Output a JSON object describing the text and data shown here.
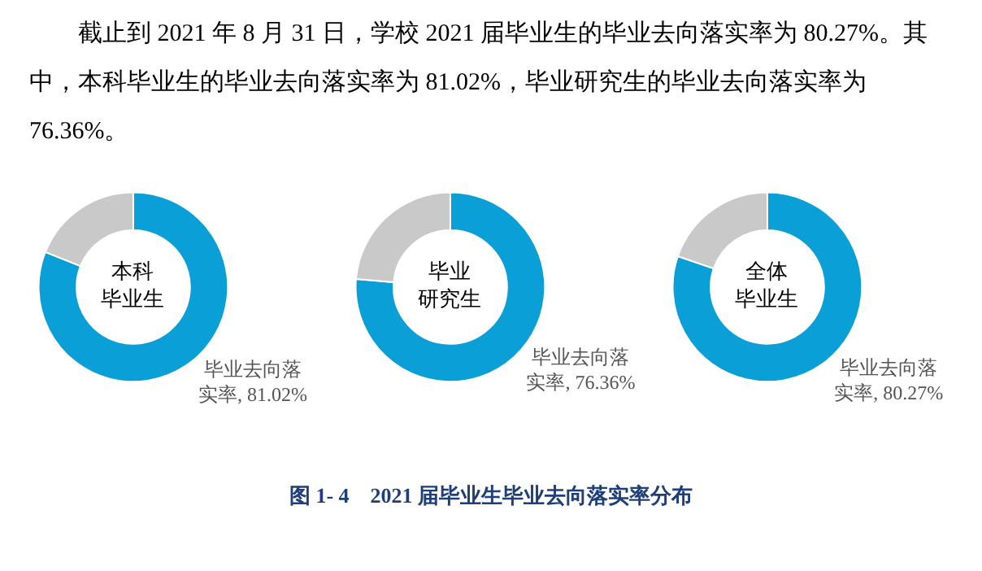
{
  "chart_data": [
    {
      "type": "other",
      "annotations": [
        "截止到 2021 年 8 月 31 日，学校 2021 届毕业生的毕业去向落实率为 80.27%。其中，本科毕业生的毕业去向落实率为 81.02%，毕业研究生的毕业去向落实率为 76.36%。"
      ]
    },
    {
      "type": "donut",
      "title": "本科毕业生",
      "categories": [
        null,
        null
      ],
      "values": [
        81.02,
        18.98
      ],
      "colors": [
        "#0b9fd8",
        "#c9c9c9"
      ],
      "value_labels": [
        "毕业去向落实率, 81.02%",
        null
      ]
    },
    {
      "type": "donut",
      "title": "毕业研究生",
      "categories": [
        null,
        null
      ],
      "values": [
        76.36,
        23.64
      ],
      "colors": [
        "#0b9fd8",
        "#c9c9c9"
      ],
      "value_labels": [
        "毕业去向落实率, 76.36%",
        null
      ]
    },
    {
      "type": "donut",
      "title": "全体毕业生",
      "categories": [
        null,
        null
      ],
      "values": [
        80.27,
        19.73
      ],
      "colors": [
        "#0b9fd8",
        "#c9c9c9"
      ],
      "value_labels": [
        "毕业去向落实率, 80.27%",
        null
      ]
    },
    {
      "type": "other",
      "title": "图 1- 4　2021 届毕业生毕业去向落实率分布"
    }
  ]
}
